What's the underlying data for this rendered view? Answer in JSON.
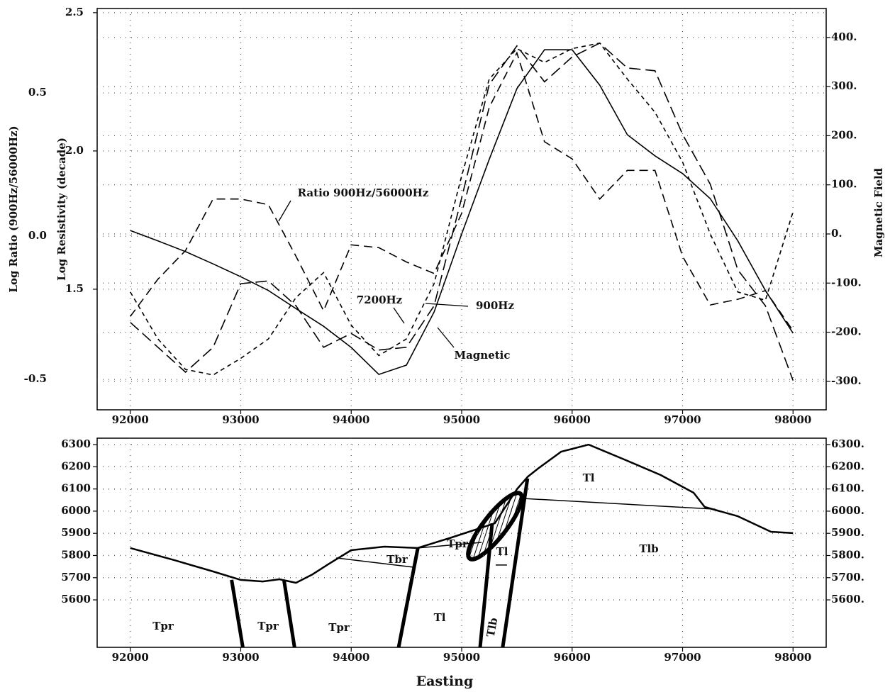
{
  "chart_data": [
    {
      "type": "line",
      "x": [
        92000,
        92250,
        92500,
        92750,
        93000,
        93250,
        93500,
        93750,
        94000,
        94250,
        94500,
        94750,
        95000,
        95250,
        95500,
        95750,
        96000,
        96250,
        96500,
        96750,
        97000,
        97250,
        97500,
        97750,
        98000
      ],
      "series": [
        {
          "name": "Ratio 900Hz/56000Hz",
          "axis": "y3",
          "color": "#000000",
          "dash": [
            12,
            7
          ],
          "values": [
            -0.28,
            -0.15,
            -0.05,
            0.13,
            0.13,
            0.11,
            -0.07,
            -0.26,
            -0.03,
            -0.04,
            -0.09,
            -0.13,
            0.08,
            0.45,
            0.64,
            0.33,
            0.27,
            0.13,
            0.23,
            0.23,
            -0.07,
            -0.24,
            -0.22,
            -0.19,
            -0.33
          ]
        },
        {
          "name": "7200Hz",
          "axis": "y",
          "color": "#000000",
          "dash": [
            6,
            5
          ],
          "values": [
            1.49,
            1.32,
            1.21,
            1.19,
            1.25,
            1.32,
            1.47,
            1.56,
            1.37,
            1.26,
            1.32,
            1.52,
            1.91,
            2.26,
            2.37,
            2.32,
            2.37,
            2.39,
            2.26,
            2.14,
            1.96,
            1.7,
            1.49,
            1.46,
            1.78
          ]
        },
        {
          "name": "900Hz",
          "axis": "y",
          "color": "#000000",
          "dash": [
            16,
            7
          ],
          "values": [
            1.38,
            1.29,
            1.2,
            1.29,
            1.52,
            1.53,
            1.44,
            1.29,
            1.34,
            1.28,
            1.29,
            1.44,
            1.83,
            2.24,
            2.38,
            2.25,
            2.34,
            2.39,
            2.3,
            2.29,
            2.06,
            1.88,
            1.57,
            1.44,
            1.17
          ]
        },
        {
          "name": "Magnetic",
          "axis": "y2",
          "color": "#000000",
          "values": [
            7,
            -14,
            -36,
            -61,
            -87,
            -115,
            -152,
            -188,
            -231,
            -286,
            -267,
            -159,
            0,
            152,
            296,
            375,
            375,
            303,
            202,
            159,
            123,
            72,
            -14,
            -115,
            -202
          ]
        }
      ],
      "xlim": [
        91700,
        98300
      ],
      "xticks": [
        92000,
        93000,
        94000,
        95000,
        96000,
        97000,
        98000
      ],
      "ylabel": "Log Resistivity (decade)",
      "ylim": [
        1.064,
        2.515
      ],
      "yticks": [
        1.5,
        {
          "value": 2.0,
          "label": "2.0"
        },
        2.5
      ],
      "y3label": "Log Ratio (900Hz/56000Hz)",
      "y3lim": [
        -0.606,
        0.795
      ],
      "y3ticks": [
        -0.5,
        {
          "value": 0,
          "label": "0.0"
        },
        0.5
      ],
      "y2label": "Magnetic Field",
      "y2lim": [
        -358,
        459
      ],
      "y2ticks": [
        {
          "value": -300,
          "label": "-300."
        },
        {
          "value": -200,
          "label": "-200."
        },
        {
          "value": -100,
          "label": "-100."
        },
        {
          "value": 0,
          "label": "0."
        },
        {
          "value": 100,
          "label": "100."
        },
        {
          "value": 200,
          "label": "200."
        },
        {
          "value": 300,
          "label": "300."
        },
        {
          "value": 400,
          "label": "400."
        }
      ],
      "grid": true
    },
    {
      "type": "cross-section",
      "series": [
        {
          "x": [
            92000,
            92400,
            92750,
            93000,
            93200,
            93350,
            93500,
            93650,
            93800,
            94000,
            94300,
            94600,
            94900,
            95300,
            95500,
            95600,
            95700,
            95900,
            96150,
            96500,
            96800,
            97100,
            97200,
            97500,
            97800,
            98000
          ],
          "values": [
            5834,
            5779,
            5728,
            5690,
            5683,
            5693,
            5677,
            5715,
            5763,
            5824,
            5840,
            5834,
            5880,
            5945,
            6099,
            6156,
            6195,
            6268,
            6300,
            6227,
            6163,
            6083,
            6019,
            5977,
            5907,
            5901
          ],
          "linewidth": 2.5
        },
        {
          "x": [
            95564,
            97295
          ],
          "values": [
            6057,
            6009
          ],
          "linewidth": 1.5
        },
        {
          "x": [
            93865,
            94571
          ],
          "values": [
            5789,
            5747
          ],
          "linewidth": 1.5
        },
        {
          "x": [
            94603,
            95180
          ],
          "values": [
            5834,
            5859
          ],
          "linewidth": 1.5
        },
        {
          "x": [
            92917,
            93019
          ],
          "values": [
            5690,
            5386
          ],
          "linewidth": 5
        },
        {
          "x": [
            93391,
            93487
          ],
          "values": [
            5690,
            5386
          ],
          "linewidth": 5
        },
        {
          "x": [
            94603,
            94429
          ],
          "values": [
            5834,
            5386
          ],
          "linewidth": 5
        },
        {
          "x": [
            95276,
            95167
          ],
          "values": [
            5945,
            5386
          ],
          "linewidth": 5
        },
        {
          "x": [
            95596,
            95372
          ],
          "values": [
            6147,
            5386
          ],
          "linewidth": 5
        },
        {
          "x": [
            95308,
            95410
          ],
          "values": [
            5757,
            5757
          ],
          "linewidth": 1.5
        }
      ],
      "annotations": [
        "Tpr",
        "Tpr",
        "Tpr",
        "Tbr",
        "Tpr",
        "Tl",
        "Tl",
        "Tlb",
        "Tl",
        "Tlb"
      ],
      "xlabel": "Easting",
      "xlim": [
        91700,
        98300
      ],
      "xticks": [
        92000,
        93000,
        94000,
        95000,
        96000,
        97000,
        98000
      ],
      "ylim": [
        5386,
        6329
      ],
      "yticks": [
        5600,
        5700,
        5800,
        5900,
        6000,
        6100,
        6200,
        6300
      ],
      "y2lim": [
        5386,
        6329
      ],
      "y2ticks": [
        {
          "value": 5600,
          "label": "5600."
        },
        {
          "value": 5700,
          "label": "5700."
        },
        {
          "value": 5800,
          "label": "5800."
        },
        {
          "value": 5900,
          "label": "5900."
        },
        {
          "value": 6000,
          "label": "6000."
        },
        {
          "value": 6100,
          "label": "6100."
        },
        {
          "value": 6200,
          "label": "6200."
        },
        {
          "value": 6300,
          "label": "6300."
        }
      ],
      "grid": true
    }
  ]
}
